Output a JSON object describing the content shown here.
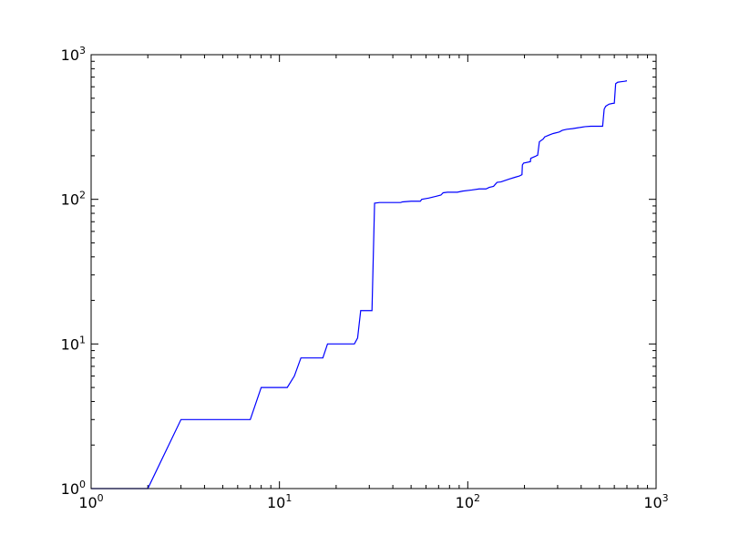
{
  "chart_data": {
    "type": "line",
    "title": "",
    "xlabel": "",
    "ylabel": "",
    "xscale": "log",
    "yscale": "log",
    "xlim": [
      1,
      1000
    ],
    "ylim": [
      1,
      1000
    ],
    "grid": false,
    "x_ticks": [
      {
        "value": 1,
        "base": "10",
        "exp": "0"
      },
      {
        "value": 10,
        "base": "10",
        "exp": "1"
      },
      {
        "value": 100,
        "base": "10",
        "exp": "2"
      },
      {
        "value": 1000,
        "base": "10",
        "exp": "3"
      }
    ],
    "y_ticks": [
      {
        "value": 1,
        "base": "10",
        "exp": "0"
      },
      {
        "value": 10,
        "base": "10",
        "exp": "1"
      },
      {
        "value": 100,
        "base": "10",
        "exp": "2"
      },
      {
        "value": 1000,
        "base": "10",
        "exp": "3"
      }
    ],
    "series": [
      {
        "color": "#0000ff",
        "points": [
          [
            1,
            1
          ],
          [
            2,
            1
          ],
          [
            3,
            3
          ],
          [
            7,
            3
          ],
          [
            8,
            5
          ],
          [
            11,
            5
          ],
          [
            12,
            6
          ],
          [
            13,
            8
          ],
          [
            17,
            8
          ],
          [
            18,
            10
          ],
          [
            25,
            10
          ],
          [
            26,
            11
          ],
          [
            27,
            17
          ],
          [
            31,
            17
          ],
          [
            32,
            94
          ],
          [
            34,
            95
          ],
          [
            37,
            95
          ],
          [
            44,
            95
          ],
          [
            45,
            96
          ],
          [
            50,
            97
          ],
          [
            56,
            97
          ],
          [
            57,
            100
          ],
          [
            62,
            102
          ],
          [
            68,
            105
          ],
          [
            72,
            107
          ],
          [
            74,
            111
          ],
          [
            78,
            112
          ],
          [
            88,
            112
          ],
          [
            94,
            114
          ],
          [
            105,
            116
          ],
          [
            115,
            118
          ],
          [
            125,
            118
          ],
          [
            130,
            121
          ],
          [
            137,
            123
          ],
          [
            143,
            131
          ],
          [
            150,
            132
          ],
          [
            158,
            135
          ],
          [
            166,
            138
          ],
          [
            178,
            142
          ],
          [
            188,
            145
          ],
          [
            194,
            148
          ],
          [
            195,
            173
          ],
          [
            198,
            178
          ],
          [
            215,
            182
          ],
          [
            216,
            192
          ],
          [
            228,
            198
          ],
          [
            235,
            202
          ],
          [
            240,
            250
          ],
          [
            252,
            262
          ],
          [
            256,
            270
          ],
          [
            270,
            278
          ],
          [
            284,
            285
          ],
          [
            306,
            292
          ],
          [
            318,
            300
          ],
          [
            336,
            305
          ],
          [
            360,
            308
          ],
          [
            400,
            315
          ],
          [
            420,
            318
          ],
          [
            450,
            320
          ],
          [
            520,
            320
          ],
          [
            530,
            420
          ],
          [
            540,
            440
          ],
          [
            562,
            455
          ],
          [
            585,
            460
          ],
          [
            600,
            462
          ],
          [
            610,
            630
          ],
          [
            625,
            645
          ],
          [
            650,
            650
          ],
          [
            680,
            655
          ],
          [
            700,
            660
          ]
        ]
      }
    ]
  }
}
